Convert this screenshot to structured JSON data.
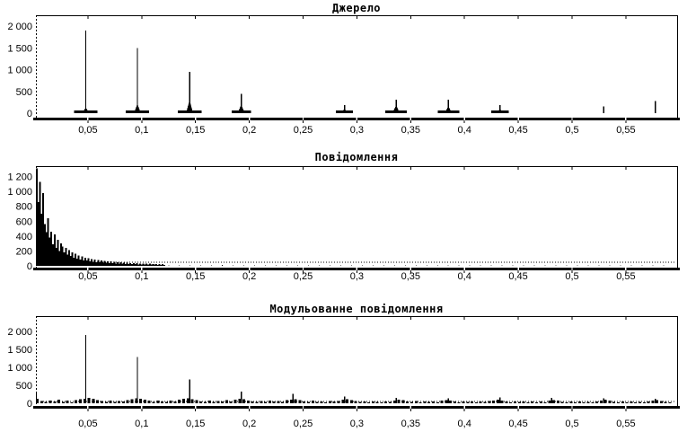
{
  "colors": {
    "background": "#ffffff",
    "foreground": "#000000"
  },
  "x_axis": {
    "ticks": [
      {
        "f": 0.05,
        "label": "0,05"
      },
      {
        "f": 0.1,
        "label": "0,1"
      },
      {
        "f": 0.15,
        "label": "0,15"
      },
      {
        "f": 0.2,
        "label": "0,2"
      },
      {
        "f": 0.25,
        "label": "0,25"
      },
      {
        "f": 0.3,
        "label": "0,3"
      },
      {
        "f": 0.35,
        "label": "0,35"
      },
      {
        "f": 0.4,
        "label": "0,4"
      },
      {
        "f": 0.45,
        "label": "0,45"
      },
      {
        "f": 0.5,
        "label": "0,5"
      },
      {
        "f": 0.55,
        "label": "0,55"
      }
    ]
  },
  "chart_data": [
    {
      "type": "bar",
      "title": "Джерело",
      "xlabel": "",
      "ylabel": "",
      "xlim": [
        0,
        0.6
      ],
      "ylim": [
        0,
        2250
      ],
      "grid": false,
      "y_ticks": [
        {
          "v": 0,
          "label": "0"
        },
        {
          "v": 500,
          "label": "500"
        },
        {
          "v": 1000,
          "label": "1 000"
        },
        {
          "v": 1500,
          "label": "1 500"
        },
        {
          "v": 2000,
          "label": "2 000"
        }
      ],
      "spikes": [
        {
          "f": 0.048,
          "v": 1900,
          "skirt": 130,
          "base": 0.011
        },
        {
          "f": 0.096,
          "v": 1500,
          "skirt": 210,
          "base": 0.011
        },
        {
          "f": 0.1445,
          "v": 950,
          "skirt": 300,
          "base": 0.011
        },
        {
          "f": 0.1925,
          "v": 440,
          "skirt": 200,
          "base": 0.009
        },
        {
          "f": 0.2885,
          "v": 190,
          "skirt": 100,
          "base": 0.008
        },
        {
          "f": 0.3365,
          "v": 310,
          "skirt": 190,
          "base": 0.01
        },
        {
          "f": 0.385,
          "v": 310,
          "skirt": 170,
          "base": 0.01
        },
        {
          "f": 0.433,
          "v": 190,
          "skirt": 90,
          "base": 0.008
        },
        {
          "f": 0.5295,
          "v": 150,
          "skirt": 0,
          "base": 0
        },
        {
          "f": 0.5775,
          "v": 280,
          "skirt": 0,
          "base": 0
        }
      ]
    },
    {
      "type": "bar",
      "title": "Повідомлення",
      "xlabel": "",
      "ylabel": "",
      "xlim": [
        0,
        0.6
      ],
      "ylim": [
        0,
        1340
      ],
      "grid": false,
      "y_ticks": [
        {
          "v": 0,
          "label": "0"
        },
        {
          "v": 200,
          "label": "200"
        },
        {
          "v": 400,
          "label": "400"
        },
        {
          "v": 600,
          "label": "600"
        },
        {
          "v": 800,
          "label": "800"
        },
        {
          "v": 1000,
          "label": "1 000"
        },
        {
          "v": 1200,
          "label": "1 200"
        }
      ],
      "zero_line": true,
      "noise": {
        "f0": 0.0025,
        "df": 0.0015,
        "values": [
          1310,
          860,
          1130,
          700,
          980,
          560,
          450,
          640,
          380,
          460,
          290,
          420,
          240,
          350,
          200,
          300,
          260,
          180,
          240,
          150,
          210,
          130,
          180,
          110,
          160,
          95,
          140,
          85,
          125,
          75,
          110,
          70,
          100,
          62,
          92,
          55,
          85,
          50,
          78,
          46,
          72,
          42,
          66,
          40,
          62,
          36,
          58,
          34,
          54,
          32,
          50,
          30,
          47,
          28,
          44,
          27,
          41,
          25,
          39,
          24,
          37,
          22,
          35,
          21,
          33,
          20,
          31,
          19,
          29,
          18,
          28,
          17,
          26,
          16,
          25,
          15,
          24,
          14,
          23,
          14
        ]
      },
      "tail": {
        "f0": 0.125,
        "df": 0.01,
        "values": [
          8,
          5,
          9,
          4,
          7,
          10,
          5,
          8,
          4,
          6,
          9,
          5,
          7,
          4,
          8,
          5,
          6,
          9,
          4,
          7,
          5,
          8,
          4,
          6,
          5,
          7,
          4,
          8,
          5,
          6,
          4,
          7,
          5,
          6,
          4,
          7,
          5,
          6,
          4,
          6,
          5,
          7,
          4,
          6,
          5,
          6,
          4
        ]
      }
    },
    {
      "type": "bar",
      "title": "Модульованне повідомлення",
      "xlabel": "",
      "ylabel": "",
      "xlim": [
        0,
        0.6
      ],
      "ylim": [
        0,
        2425
      ],
      "grid": false,
      "y_ticks": [
        {
          "v": 0,
          "label": "0"
        },
        {
          "v": 500,
          "label": "500"
        },
        {
          "v": 1000,
          "label": "1 000"
        },
        {
          "v": 1500,
          "label": "1 500"
        },
        {
          "v": 2000,
          "label": "2 000"
        }
      ],
      "zero_line": true,
      "noise": {
        "f0": 0.003,
        "df": 0.004,
        "values": [
          120,
          60,
          35,
          80,
          45,
          95,
          40,
          70,
          30,
          85,
          110,
          130,
          150,
          120,
          90,
          60,
          40,
          75,
          35,
          65,
          45,
          90,
          110,
          140,
          130,
          100,
          70,
          40,
          80,
          50,
          35,
          70,
          45,
          95,
          120,
          135,
          115,
          85,
          55,
          40,
          75,
          35,
          60,
          45,
          85,
          55,
          100,
          120,
          110,
          80,
          50,
          35,
          65,
          40,
          75,
          45,
          60,
          35,
          90,
          105,
          115,
          85,
          55,
          40,
          70,
          35,
          55,
          30,
          65,
          45,
          60,
          95,
          110,
          90,
          60,
          35,
          55,
          30,
          50,
          40,
          30,
          55,
          35,
          75,
          95,
          85,
          55,
          35,
          60,
          30,
          45,
          35,
          55,
          30,
          70,
          90,
          80,
          50,
          30,
          55,
          35,
          50,
          30,
          45,
          35,
          60,
          80,
          95,
          75,
          45,
          30,
          50,
          35,
          55,
          30,
          45,
          25,
          50,
          30,
          70,
          90,
          75,
          40,
          25,
          45,
          30,
          50,
          25,
          40,
          30,
          55,
          80,
          95,
          70,
          40,
          25,
          45,
          30,
          50,
          25,
          35,
          25,
          55,
          75,
          90,
          65,
          35,
          25
        ]
      },
      "spikes": [
        {
          "f": 0.002,
          "v": 310
        },
        {
          "f": 0.048,
          "v": 1900
        },
        {
          "f": 0.096,
          "v": 1290
        },
        {
          "f": 0.1445,
          "v": 660
        },
        {
          "f": 0.1925,
          "v": 330
        },
        {
          "f": 0.2405,
          "v": 260
        },
        {
          "f": 0.2885,
          "v": 185
        },
        {
          "f": 0.3365,
          "v": 150
        },
        {
          "f": 0.385,
          "v": 135
        },
        {
          "f": 0.433,
          "v": 160
        },
        {
          "f": 0.481,
          "v": 150
        },
        {
          "f": 0.5295,
          "v": 140
        },
        {
          "f": 0.5775,
          "v": 130
        }
      ]
    }
  ]
}
